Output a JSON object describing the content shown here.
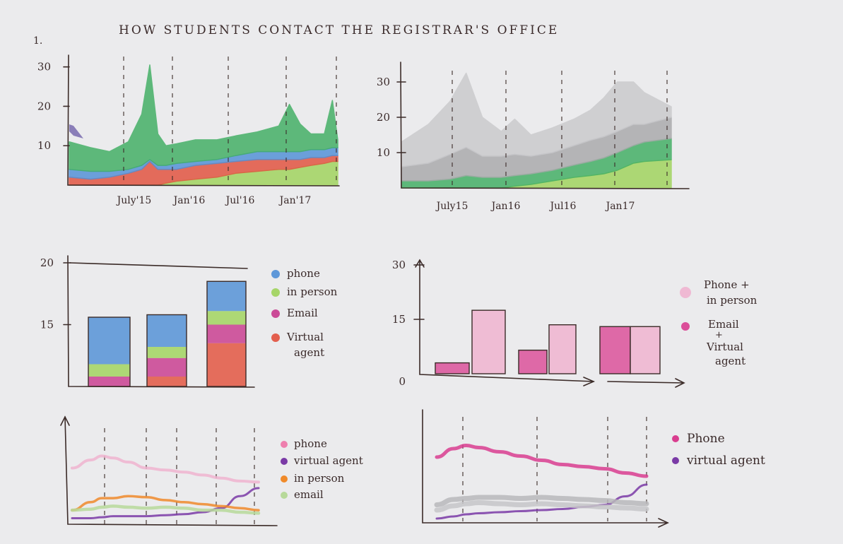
{
  "title": "HOW STUDENTS CONTACT THE REGISTRAR'S OFFICE",
  "marks": {
    "corner": "1."
  },
  "colors": {
    "phone": "#4f8fd6",
    "in_person": "#9fd35a",
    "email": "#c8398d",
    "virtual_agent": "#e2503c",
    "green": "#3fae62",
    "grey": "#a9a9ab",
    "pink": "#d93d8f",
    "light_pink": "#f0b4cf",
    "purple": "#7a3aa6",
    "orange": "#f08a2a",
    "line_green": "#b7d99a"
  },
  "chart_data": [
    {
      "id": "stacked-area",
      "type": "area",
      "ylim": [
        0,
        33
      ],
      "yticks": [
        "10",
        "20",
        "30"
      ],
      "xlabels": [
        "July'15",
        "Jan'16",
        "Jul'16",
        "Jan'17"
      ],
      "x": [
        0,
        0.08,
        0.15,
        0.22,
        0.27,
        0.3,
        0.33,
        0.36,
        0.4,
        0.47,
        0.55,
        0.62,
        0.7,
        0.78,
        0.82,
        0.86,
        0.9,
        0.95,
        0.98,
        1
      ],
      "series": [
        {
          "values": [
            0,
            0,
            0,
            0,
            0,
            0,
            0,
            0.5,
            1,
            1.5,
            2,
            3,
            3.5,
            4,
            4,
            4.5,
            5,
            5.5,
            6,
            6
          ]
        },
        {
          "values": [
            2,
            1.5,
            2,
            3,
            4,
            6,
            4,
            3.5,
            3,
            3.5,
            3.5,
            3,
            3,
            2.5,
            2.5,
            2,
            2,
            1.5,
            1.5,
            1.5
          ]
        },
        {
          "values": [
            2,
            2,
            1.5,
            1,
            1,
            0.5,
            1,
            1,
            1.5,
            1,
            1,
            1.5,
            2,
            2,
            2,
            2,
            2,
            2,
            2,
            2
          ]
        },
        {
          "values": [
            7,
            6,
            5,
            7,
            13,
            24,
            8,
            5,
            5,
            5.5,
            5,
            5,
            5,
            6.5,
            12,
            7,
            4,
            4,
            12,
            2
          ]
        }
      ]
    },
    {
      "id": "grey-area",
      "type": "area",
      "ylim": [
        0,
        34
      ],
      "yticks": [
        "10",
        "20",
        "30"
      ],
      "xlabels": [
        "July15",
        "Jan16",
        "Jul16",
        "Jan17"
      ],
      "x": [
        0,
        0.1,
        0.18,
        0.24,
        0.3,
        0.37,
        0.42,
        0.48,
        0.56,
        0.64,
        0.7,
        0.75,
        0.8,
        0.86,
        0.9,
        1
      ],
      "series": [
        {
          "values": [
            0,
            0,
            0,
            0,
            0,
            0,
            0.5,
            1,
            2,
            3,
            3.5,
            4,
            5,
            7,
            7.5,
            8
          ]
        },
        {
          "values": [
            2,
            2,
            2.5,
            3.5,
            3,
            3,
            3,
            3,
            3,
            3.5,
            4,
            4.5,
            5,
            5,
            5.5,
            6
          ]
        },
        {
          "values": [
            4,
            5,
            7,
            8,
            6,
            6,
            6,
            5,
            5,
            5.5,
            6,
            6,
            6,
            6,
            5,
            6
          ]
        },
        {
          "values": [
            7,
            11,
            15,
            21,
            11,
            7,
            10,
            6,
            7,
            7.5,
            8.5,
            11,
            14,
            12,
            9,
            3
          ]
        }
      ]
    },
    {
      "id": "stacked-bars",
      "type": "bar",
      "ylim": [
        10,
        20
      ],
      "yticks": [
        "15",
        "20"
      ],
      "segments": [
        {
          "values": [
            0.8,
            0.8,
            3.5
          ]
        },
        {
          "values": [
            0.7,
            1.5,
            1.5
          ]
        },
        {
          "values": [
            1.0,
            0.9,
            1.1
          ]
        },
        {
          "values": [
            3.8,
            2.6,
            2.4
          ]
        }
      ],
      "legend": [
        "phone",
        "in person",
        "Email",
        "Virtual agent"
      ]
    },
    {
      "id": "paired-bars",
      "type": "bar",
      "ylim": [
        0,
        30
      ],
      "yticks": [
        "0",
        "15",
        "30"
      ],
      "pairs": [
        {
          "email_virtual": 3,
          "phone_person": 17.5
        },
        {
          "email_virtual": 6.5,
          "phone_person": 13.5
        },
        {
          "email_virtual": 13,
          "phone_person": 13
        }
      ],
      "legend": [
        "Phone + in person",
        "Email + Virtual agent"
      ]
    },
    {
      "id": "four-lines",
      "type": "line",
      "ylim": [
        0,
        10
      ],
      "x": [
        0,
        0.1,
        0.16,
        0.22,
        0.3,
        0.4,
        0.5,
        0.6,
        0.7,
        0.8,
        0.9,
        1
      ],
      "series": [
        {
          "name": "phone",
          "values": [
            5.6,
            6.4,
            6.8,
            6.6,
            6.2,
            5.6,
            5.4,
            5.2,
            4.9,
            4.6,
            4.3,
            4.2
          ]
        },
        {
          "name": "virtual agent",
          "values": [
            0.6,
            0.6,
            0.7,
            0.8,
            0.8,
            0.8,
            0.9,
            1,
            1.2,
            1.6,
            2.8,
            3.6
          ]
        },
        {
          "name": "in person",
          "values": [
            1.4,
            2.2,
            2.6,
            2.6,
            2.8,
            2.7,
            2.4,
            2.2,
            2,
            1.8,
            1.6,
            1.4
          ]
        },
        {
          "name": "email",
          "values": [
            1.4,
            1.5,
            1.7,
            1.8,
            1.7,
            1.6,
            1.7,
            1.6,
            1.4,
            1.4,
            1.2,
            1.1
          ]
        }
      ]
    },
    {
      "id": "two-lines",
      "type": "line",
      "ylim": [
        0,
        10
      ],
      "x": [
        0,
        0.08,
        0.14,
        0.2,
        0.3,
        0.4,
        0.5,
        0.6,
        0.7,
        0.8,
        0.9,
        1
      ],
      "series": [
        {
          "name": "Phone",
          "values": [
            6.2,
            7,
            7.3,
            7.1,
            6.7,
            6.3,
            5.9,
            5.5,
            5.3,
            5.1,
            4.7,
            4.4
          ]
        },
        {
          "name": "virtual agent",
          "values": [
            0.4,
            0.6,
            0.8,
            0.9,
            1,
            1.1,
            1.2,
            1.3,
            1.5,
            1.7,
            2.5,
            3.6
          ]
        },
        {
          "values": [
            1.7,
            2.2,
            2.3,
            2.4,
            2.4,
            2.3,
            2.4,
            2.3,
            2.2,
            2.1,
            1.9,
            1.8
          ]
        },
        {
          "values": [
            1.2,
            1.6,
            1.8,
            1.9,
            1.8,
            1.7,
            1.8,
            1.7,
            1.6,
            1.5,
            1.4,
            1.3
          ]
        }
      ]
    }
  ]
}
